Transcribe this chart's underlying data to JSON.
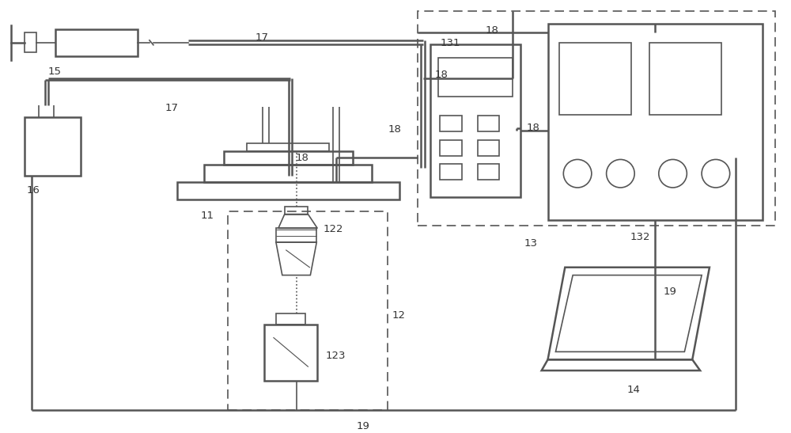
{
  "bg": "#ffffff",
  "lc": "#555555",
  "lw": 1.8,
  "lw_thin": 1.2,
  "fs": 9.5,
  "tc": "#333333",
  "fig_w": 10.0,
  "fig_h": 5.47
}
